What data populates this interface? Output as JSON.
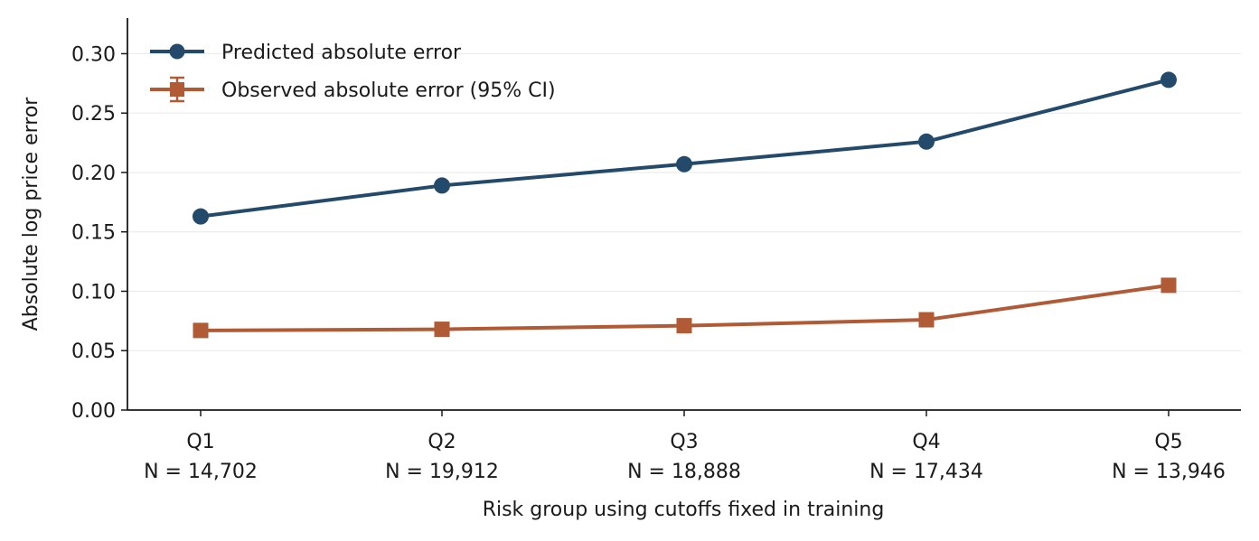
{
  "chart_data": {
    "type": "line",
    "xlabel": "Risk group using cutoffs fixed in training",
    "ylabel": "Absolute log price error",
    "ylim": [
      0,
      0.33
    ],
    "yticks": [
      "0.00",
      "0.05",
      "0.10",
      "0.15",
      "0.20",
      "0.25",
      "0.30"
    ],
    "grid": "horizontal",
    "legend_position": "top-left",
    "categories": [
      "Q1",
      "Q2",
      "Q3",
      "Q4",
      "Q5"
    ],
    "category_counts": [
      "N = 14,702",
      "N = 19,912",
      "N = 18,888",
      "N = 17,434",
      "N = 13,946"
    ],
    "series": [
      {
        "name": "Predicted absolute error",
        "marker": "circle",
        "color": "#234a6a",
        "values": [
          0.163,
          0.189,
          0.207,
          0.226,
          0.278
        ]
      },
      {
        "name": "Observed absolute error (95% CI)",
        "marker": "square",
        "color": "#b05a36",
        "values": [
          0.067,
          0.068,
          0.071,
          0.076,
          0.105
        ],
        "ci_low": [
          0.064,
          0.066,
          0.069,
          0.073,
          0.1
        ],
        "ci_high": [
          0.07,
          0.071,
          0.074,
          0.08,
          0.11
        ]
      }
    ]
  }
}
